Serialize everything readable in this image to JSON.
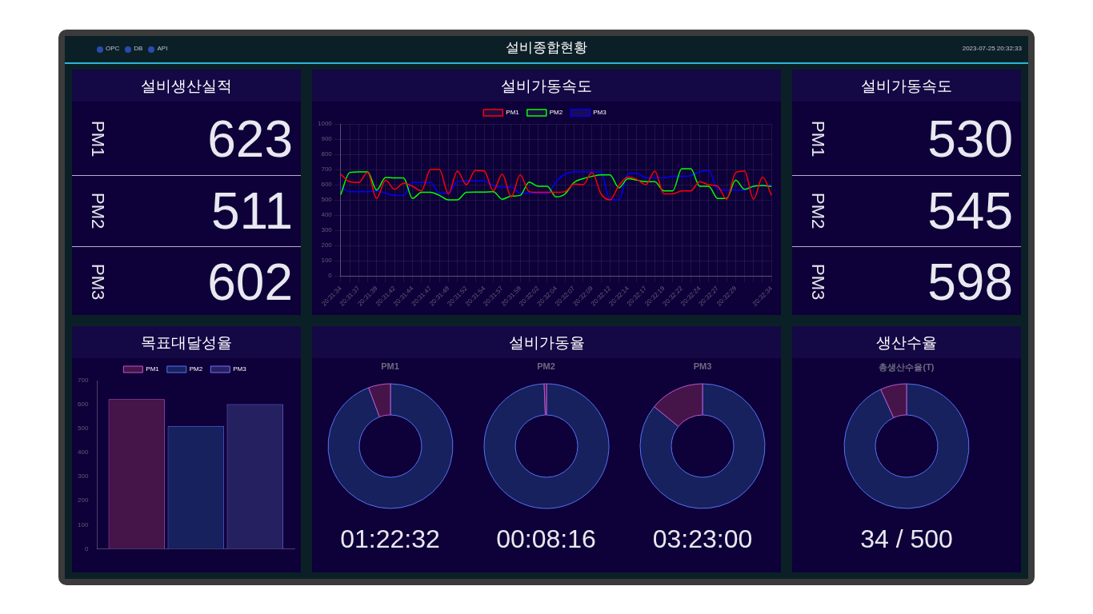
{
  "chart_data": [
    {
      "type": "other",
      "title": "설비종합현황",
      "annotations": [
        "OPC",
        "DB",
        "API",
        "2023-07-25 20:32:33"
      ]
    },
    {
      "type": "other",
      "title": "설비생산실적",
      "categories": [
        "PM1",
        "PM2",
        "PM3"
      ],
      "values": [
        623,
        511,
        602
      ],
      "data_labels": true
    },
    {
      "type": "line",
      "title": "설비가동속도",
      "categories": [
        "20:31:34",
        null,
        "20:31:37",
        null,
        "20:31:39",
        null,
        "20:31:42",
        null,
        "20:31:44",
        null,
        "20:31:47",
        null,
        "20:31:49",
        null,
        "20:31:52",
        null,
        "20:31:54",
        null,
        "20:31:57",
        null,
        "20:31:59",
        null,
        "20:32:02",
        null,
        "20:32:04",
        null,
        "20:32:07",
        null,
        "20:32:09",
        null,
        "20:32:12",
        null,
        "20:32:14",
        null,
        "20:32:17",
        null,
        "20:32:19",
        null,
        "20:32:22",
        null,
        "20:32:24",
        null,
        "20:32:27",
        null,
        "20:32:29",
        null,
        null,
        null,
        "20:32:34"
      ],
      "series": [
        {
          "name": "PM1",
          "color": "#ff0000",
          "values": [
            670,
            620,
            615,
            680,
            510,
            630,
            570,
            610,
            590,
            560,
            700,
            700,
            540,
            690,
            600,
            695,
            690,
            560,
            670,
            520,
            665,
            555,
            550,
            550,
            550,
            555,
            605,
            600,
            680,
            540,
            500,
            595,
            650,
            635,
            600,
            690,
            540,
            540,
            560,
            560,
            620,
            600,
            590,
            505,
            680,
            690,
            505,
            650,
            530
          ]
        },
        {
          "name": "PM2",
          "color": "#00ff00",
          "values": [
            535,
            680,
            685,
            685,
            565,
            648,
            645,
            645,
            510,
            550,
            550,
            530,
            500,
            500,
            550,
            552,
            552,
            555,
            505,
            525,
            530,
            618,
            590,
            590,
            520,
            540,
            615,
            640,
            655,
            665,
            665,
            580,
            640,
            630,
            620,
            620,
            560,
            560,
            705,
            705,
            590,
            590,
            510,
            510,
            630,
            570,
            590,
            595,
            588
          ]
        },
        {
          "name": "PM3",
          "color": "#0000ff",
          "values": [
            585,
            555,
            555,
            555,
            560,
            545,
            530,
            530,
            615,
            615,
            615,
            545,
            545,
            620,
            625,
            625,
            625,
            595,
            585,
            585,
            545,
            545,
            545,
            540,
            620,
            670,
            685,
            685,
            685,
            685,
            500,
            500,
            670,
            675,
            645,
            645,
            645,
            655,
            655,
            660,
            685,
            695,
            570,
            565,
            565,
            565,
            590,
            595,
            598
          ]
        }
      ],
      "ylim": [
        0,
        1000
      ],
      "yticks": [
        0,
        100,
        200,
        300,
        400,
        500,
        600,
        700,
        800,
        900,
        1000
      ],
      "grid": true,
      "legend": "top",
      "marker": "none"
    },
    {
      "type": "other",
      "title": "설비가동속도",
      "categories": [
        "PM1",
        "PM2",
        "PM3"
      ],
      "values": [
        530,
        545,
        598
      ],
      "data_labels": true
    },
    {
      "type": "bar",
      "title": "목표대달성율",
      "categories": [
        null
      ],
      "series": [
        {
          "name": "PM1",
          "color": "#45154a",
          "values": [
            623
          ]
        },
        {
          "name": "PM2",
          "color": "#16215e",
          "values": [
            511
          ]
        },
        {
          "name": "PM3",
          "color": "#252060",
          "values": [
            602
          ]
        }
      ],
      "ylim": [
        0,
        700
      ],
      "yticks": [
        0,
        100,
        200,
        300,
        400,
        500,
        600,
        700
      ],
      "legend": "top"
    },
    {
      "type": "other",
      "title": "설비가동율"
    },
    {
      "type": "donut",
      "subtitle": "PM1",
      "categories": [
        null,
        null
      ],
      "values": [
        94.3,
        5.7
      ],
      "colors": [
        "#16215e",
        "#45154a"
      ],
      "annotations": [
        "01:22:32"
      ]
    },
    {
      "type": "donut",
      "subtitle": "PM2",
      "categories": [
        null,
        null
      ],
      "values": [
        99.4,
        0.6
      ],
      "colors": [
        "#16215e",
        "#45154a"
      ],
      "annotations": [
        "00:08:16"
      ]
    },
    {
      "type": "donut",
      "subtitle": "PM3",
      "categories": [
        null,
        null
      ],
      "values": [
        85.9,
        14.1
      ],
      "colors": [
        "#16215e",
        "#45154a"
      ],
      "annotations": [
        "03:23:00"
      ]
    },
    {
      "type": "donut",
      "title": "생산수율",
      "subtitle": "총생산수율(T)",
      "categories": [
        null,
        null
      ],
      "values": [
        93.2,
        6.8
      ],
      "colors": [
        "#16215e",
        "#45154a"
      ],
      "annotations": [
        "34 / 500"
      ]
    }
  ]
}
